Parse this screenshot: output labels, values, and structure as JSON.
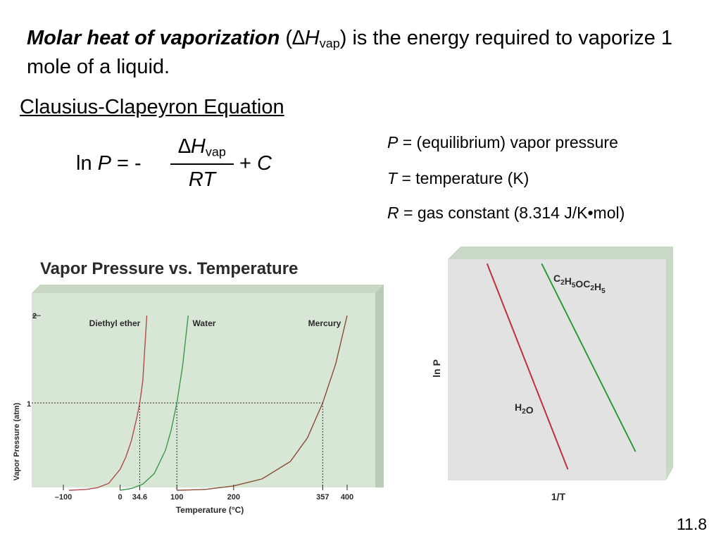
{
  "intro": {
    "term": "Molar heat of vaporization",
    "open": " (",
    "delta": "∆H",
    "sub": "vap",
    "close": ")",
    "rest": " is the energy required to vaporize 1 mole of a liquid."
  },
  "equation": {
    "title": "Clausius-Clapeyron Equation",
    "ln": "ln",
    "p": "P",
    "eq": " = -",
    "num": "∆H",
    "num_sub": "vap",
    "den": "RT",
    "plus": "+",
    "c": "C"
  },
  "definitions": [
    {
      "sym": "P",
      "text": " = (equilibrium) vapor pressure"
    },
    {
      "sym": "T",
      "text": " = temperature (K)"
    },
    {
      "sym": "R",
      "text": " = gas constant (8.314 J/K•mol)"
    }
  ],
  "slide_number": "11.8",
  "chart_data": [
    {
      "type": "line",
      "title": "Vapor Pressure vs. Temperature",
      "xlabel": "Temperature (°C)",
      "ylabel": "Vapor Pressure (atm)",
      "xlim": [
        -100,
        400
      ],
      "ylim": [
        0,
        2
      ],
      "xticks": [
        -100,
        0,
        34.6,
        100,
        200,
        357,
        400
      ],
      "xtick_labels": [
        "–100",
        "0",
        "34.6",
        "100",
        "200",
        "357",
        "400"
      ],
      "yticks": [
        1,
        2
      ],
      "ytick_labels": [
        "1",
        "2"
      ],
      "background": "#d8e6d6",
      "series": [
        {
          "name": "Diethyl ether",
          "color": "#b24a4a",
          "x": [
            -90,
            -60,
            -40,
            -20,
            0,
            10,
            20,
            30,
            34.6,
            40,
            47
          ],
          "y": [
            0,
            0.01,
            0.03,
            0.08,
            0.24,
            0.38,
            0.57,
            0.85,
            1.0,
            1.25,
            2.0
          ]
        },
        {
          "name": "Water",
          "color": "#3a9a4a",
          "x": [
            0,
            20,
            40,
            60,
            80,
            90,
            100,
            110,
            120
          ],
          "y": [
            0,
            0.02,
            0.07,
            0.19,
            0.46,
            0.69,
            1.0,
            1.42,
            2.0
          ]
        },
        {
          "name": "Mercury",
          "color": "#8a4a34",
          "x": [
            100,
            150,
            200,
            250,
            300,
            330,
            357,
            380,
            400
          ],
          "y": [
            0,
            0.01,
            0.05,
            0.13,
            0.33,
            0.6,
            1.0,
            1.45,
            2.0
          ]
        }
      ]
    },
    {
      "type": "line",
      "xlabel": "1/T",
      "ylabel": "ln P",
      "background": "#e2e2e2",
      "series": [
        {
          "name": "H2O",
          "color": "#c0303a",
          "x": [
            0.18,
            0.55
          ],
          "y": [
            0.98,
            0.05
          ]
        },
        {
          "name": "C2H5OC2H5",
          "color": "#2a9a3a",
          "x": [
            0.43,
            0.86
          ],
          "y": [
            0.98,
            0.13
          ]
        }
      ]
    }
  ]
}
